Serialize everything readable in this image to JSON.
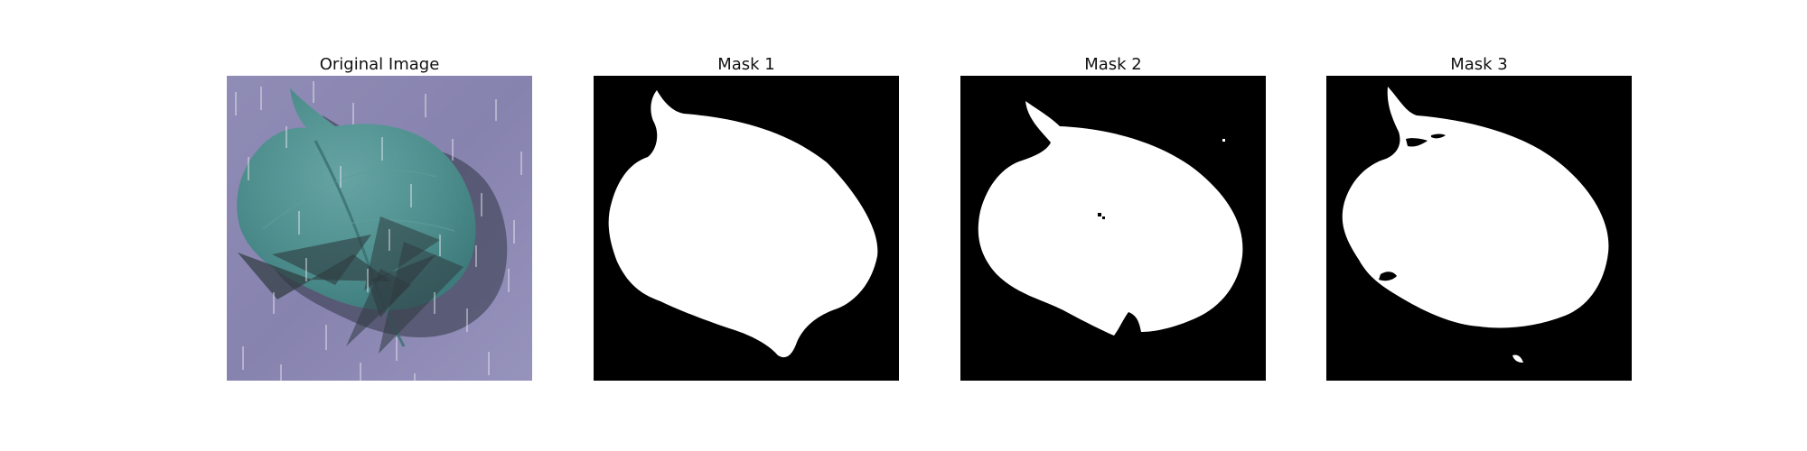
{
  "figure": {
    "panels": [
      {
        "title": "Original Image",
        "content": "leaf-photo-with-rain-and-shadow-overlay"
      },
      {
        "title": "Mask 1",
        "content": "binary-mask"
      },
      {
        "title": "Mask 2",
        "content": "binary-mask"
      },
      {
        "title": "Mask 3",
        "content": "binary-mask"
      }
    ]
  },
  "colors": {
    "mask_background": "#000000",
    "mask_foreground": "#ffffff",
    "photo_background": "#8c89b4",
    "leaf_green": "#4b8d89",
    "shadow_dark": "#2f3a3f"
  }
}
